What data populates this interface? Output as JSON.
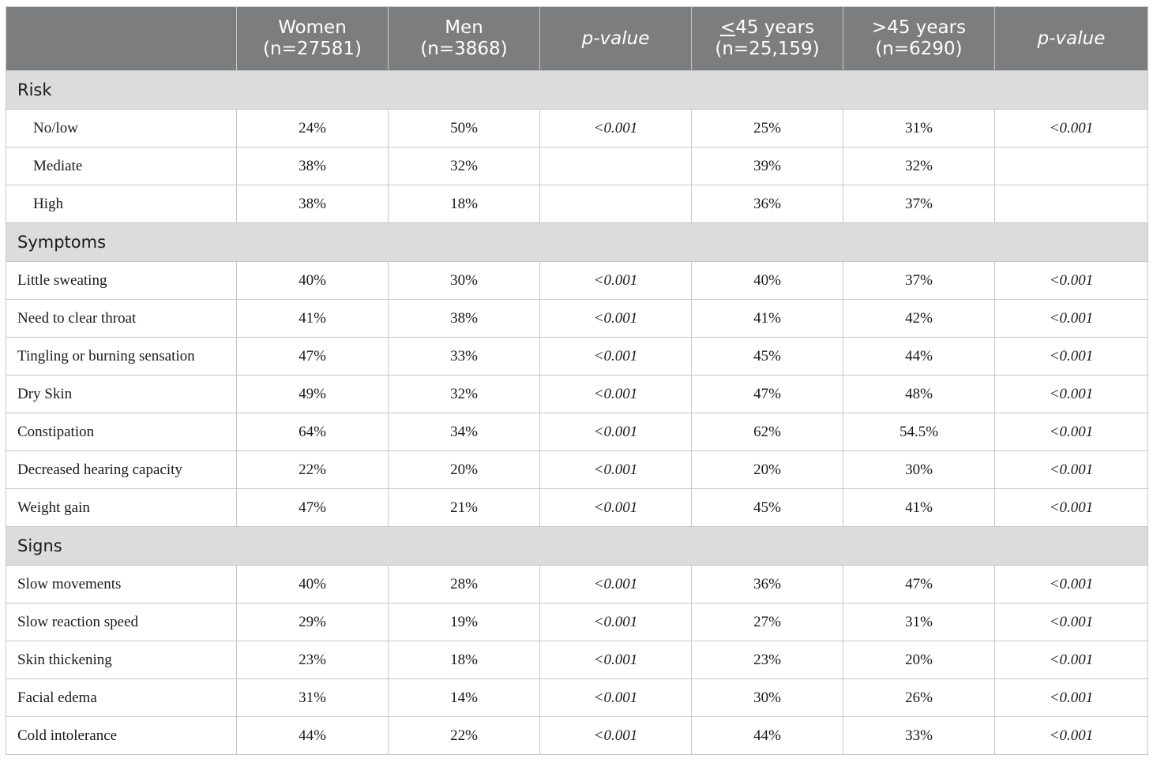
{
  "header": {
    "blank": "",
    "columns": [
      {
        "line1": "Women",
        "line2": "(n=27581)",
        "italic": false
      },
      {
        "line1": "Men",
        "line2": "(n=3868)",
        "italic": false
      },
      {
        "line1": "p-value",
        "line2": "",
        "italic": true
      },
      {
        "line1_prefix": "",
        "line1_underlined": "<",
        "line1_rest": "45 years",
        "line2": "(n=25,159)",
        "italic": false
      },
      {
        "line1": ">45 years",
        "line2": "(n=6290)",
        "italic": false
      },
      {
        "line1": "p-value",
        "line2": "",
        "italic": true
      }
    ]
  },
  "sections": [
    {
      "title": "Risk",
      "indent": true,
      "rows": [
        {
          "label": "No/low",
          "cells": [
            "24%",
            "50%",
            "<0.001",
            "25%",
            "31%",
            "<0.001"
          ]
        },
        {
          "label": "Mediate",
          "cells": [
            "38%",
            "32%",
            "",
            "39%",
            "32%",
            ""
          ]
        },
        {
          "label": "High",
          "cells": [
            "38%",
            "18%",
            "",
            "36%",
            "37%",
            ""
          ]
        }
      ]
    },
    {
      "title": "Symptoms",
      "indent": false,
      "rows": [
        {
          "label": "Little sweating",
          "cells": [
            "40%",
            "30%",
            "<0.001",
            "40%",
            "37%",
            "<0.001"
          ]
        },
        {
          "label": "Need to clear throat",
          "cells": [
            "41%",
            "38%",
            "<0.001",
            "41%",
            "42%",
            "<0.001"
          ]
        },
        {
          "label": "Tingling or burning sensation",
          "cells": [
            "47%",
            "33%",
            "<0.001",
            "45%",
            "44%",
            "<0.001"
          ]
        },
        {
          "label": "Dry Skin",
          "cells": [
            "49%",
            "32%",
            "<0.001",
            "47%",
            "48%",
            "<0.001"
          ]
        },
        {
          "label": "Constipation",
          "cells": [
            "64%",
            "34%",
            "<0.001",
            "62%",
            "54.5%",
            "<0.001"
          ]
        },
        {
          "label": "Decreased hearing capacity",
          "cells": [
            "22%",
            "20%",
            "<0.001",
            "20%",
            "30%",
            "<0.001"
          ]
        },
        {
          "label": "Weight gain",
          "cells": [
            "47%",
            "21%",
            "<0.001",
            "45%",
            "41%",
            "<0.001"
          ]
        }
      ]
    },
    {
      "title": "Signs",
      "indent": false,
      "rows": [
        {
          "label": "Slow movements",
          "cells": [
            "40%",
            "28%",
            "<0.001",
            "36%",
            "47%",
            "<0.001"
          ]
        },
        {
          "label": "Slow reaction speed",
          "cells": [
            "29%",
            "19%",
            "<0.001",
            "27%",
            "31%",
            "<0.001"
          ]
        },
        {
          "label": "Skin thickening",
          "cells": [
            "23%",
            "18%",
            "<0.001",
            "23%",
            "20%",
            "<0.001"
          ]
        },
        {
          "label": "Facial edema",
          "cells": [
            "31%",
            "14%",
            "<0.001",
            "30%",
            "26%",
            "<0.001"
          ]
        },
        {
          "label": "Cold intolerance",
          "cells": [
            "44%",
            "22%",
            "<0.001",
            "44%",
            "33%",
            "<0.001"
          ]
        }
      ]
    }
  ],
  "colors": {
    "header_bg": "#7b7d7e",
    "section_bg": "#dcdcdc",
    "border": "#c6c6c6"
  }
}
